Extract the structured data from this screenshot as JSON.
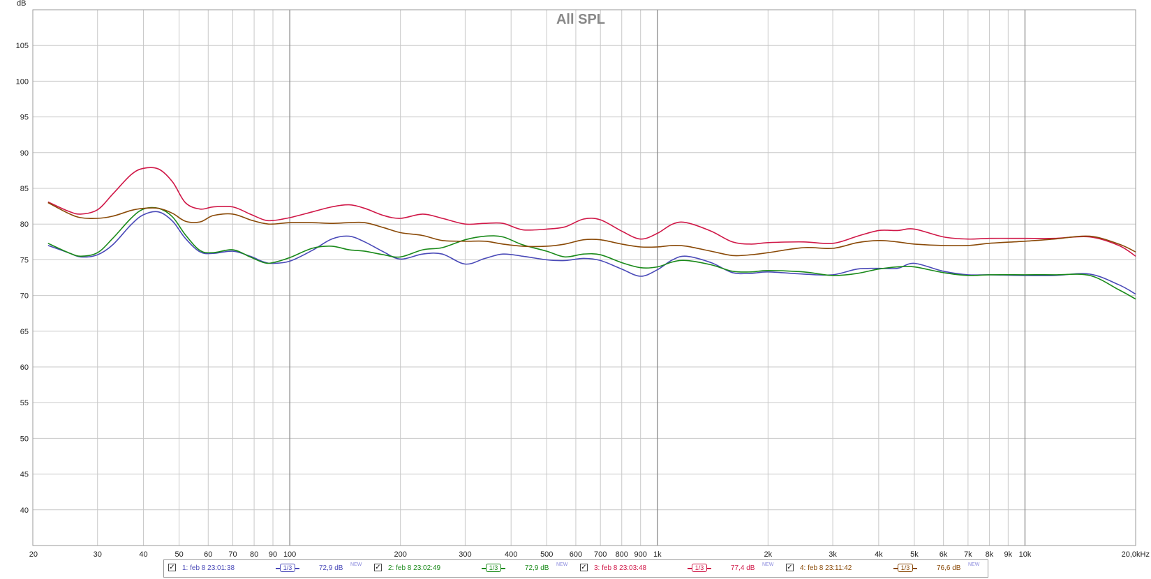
{
  "chart_data": {
    "type": "line",
    "title": "All SPL",
    "ylabel": "dB",
    "xlabel": "",
    "x_scale": "log",
    "xlim": [
      20,
      20000
    ],
    "ylim": [
      35,
      110
    ],
    "grid": true,
    "y_ticks": [
      "40",
      "45",
      "50",
      "55",
      "60",
      "65",
      "70",
      "75",
      "80",
      "85",
      "90",
      "95",
      "100",
      "105"
    ],
    "x_ticks": [
      {
        "f": 20,
        "label": "20"
      },
      {
        "f": 30,
        "label": "30"
      },
      {
        "f": 40,
        "label": "40"
      },
      {
        "f": 50,
        "label": "50"
      },
      {
        "f": 60,
        "label": "60"
      },
      {
        "f": 70,
        "label": "70"
      },
      {
        "f": 80,
        "label": "80"
      },
      {
        "f": 90,
        "label": "90"
      },
      {
        "f": 100,
        "label": "100"
      },
      {
        "f": 200,
        "label": "200"
      },
      {
        "f": 300,
        "label": "300"
      },
      {
        "f": 400,
        "label": "400"
      },
      {
        "f": 500,
        "label": "500"
      },
      {
        "f": 600,
        "label": "600"
      },
      {
        "f": 700,
        "label": "700"
      },
      {
        "f": 800,
        "label": "800"
      },
      {
        "f": 900,
        "label": "900"
      },
      {
        "f": 1000,
        "label": "1k"
      },
      {
        "f": 2000,
        "label": "2k"
      },
      {
        "f": 3000,
        "label": "3k"
      },
      {
        "f": 4000,
        "label": "4k"
      },
      {
        "f": 5000,
        "label": "5k"
      },
      {
        "f": 6000,
        "label": "6k"
      },
      {
        "f": 7000,
        "label": "7k"
      },
      {
        "f": 8000,
        "label": "8k"
      },
      {
        "f": 9000,
        "label": "9k"
      },
      {
        "f": 10000,
        "label": "10k"
      },
      {
        "f": 20000,
        "label": "20,0kHz"
      }
    ],
    "series": [
      {
        "name": "1: feb 8 23:01:38",
        "color": "#4a4ab8",
        "x": [
          22,
          25,
          27,
          30,
          33,
          37,
          40,
          44,
          48,
          52,
          57,
          62,
          70,
          78,
          85,
          90,
          100,
          115,
          130,
          145,
          160,
          180,
          200,
          230,
          260,
          300,
          340,
          380,
          430,
          500,
          560,
          630,
          700,
          800,
          900,
          1000,
          1100,
          1200,
          1400,
          1600,
          1800,
          2000,
          2500,
          3000,
          3500,
          4000,
          4500,
          5000,
          6000,
          7000,
          8000,
          10000,
          12000,
          15000,
          18000,
          20000
        ],
        "y": [
          77.0,
          76.0,
          75.4,
          75.7,
          77.1,
          79.9,
          81.3,
          81.7,
          80.4,
          78.0,
          76.1,
          75.9,
          76.2,
          75.5,
          74.7,
          74.5,
          74.8,
          76.3,
          77.9,
          78.3,
          77.5,
          76.1,
          75.1,
          75.8,
          75.8,
          74.4,
          75.2,
          75.8,
          75.5,
          75.0,
          74.9,
          75.2,
          74.9,
          73.7,
          72.7,
          73.6,
          75.0,
          75.5,
          74.6,
          73.2,
          73.1,
          73.3,
          73.0,
          72.9,
          73.7,
          73.8,
          73.8,
          74.5,
          73.4,
          72.9,
          72.9,
          72.8,
          72.8,
          73.0,
          71.5,
          70.2
        ]
      },
      {
        "name": "2: feb 8 23:02:49",
        "color": "#1a8a1a",
        "x": [
          22,
          25,
          27,
          30,
          33,
          37,
          40,
          44,
          48,
          52,
          57,
          62,
          70,
          78,
          85,
          90,
          100,
          115,
          130,
          145,
          160,
          180,
          200,
          230,
          260,
          300,
          340,
          380,
          430,
          500,
          560,
          630,
          700,
          800,
          900,
          1000,
          1100,
          1200,
          1400,
          1600,
          1800,
          2000,
          2500,
          3000,
          3500,
          4000,
          4500,
          5000,
          6000,
          7000,
          8000,
          10000,
          12000,
          15000,
          18000,
          20000
        ],
        "y": [
          77.3,
          76.0,
          75.5,
          76.0,
          78.0,
          80.8,
          82.1,
          82.2,
          81.0,
          78.5,
          76.3,
          76.0,
          76.4,
          75.4,
          74.6,
          74.6,
          75.3,
          76.6,
          76.9,
          76.4,
          76.2,
          75.7,
          75.4,
          76.4,
          76.7,
          77.8,
          78.3,
          78.2,
          77.1,
          76.2,
          75.4,
          75.8,
          75.7,
          74.6,
          73.9,
          74.0,
          74.7,
          74.9,
          74.3,
          73.4,
          73.3,
          73.5,
          73.3,
          72.8,
          73.1,
          73.7,
          74.0,
          74.0,
          73.2,
          72.8,
          72.9,
          72.9,
          72.9,
          72.8,
          70.8,
          69.5
        ]
      },
      {
        "name": "3: feb 8 23:03:48",
        "color": "#d01848",
        "x": [
          22,
          25,
          27,
          30,
          33,
          37,
          40,
          44,
          48,
          52,
          57,
          62,
          70,
          78,
          85,
          90,
          100,
          115,
          130,
          145,
          160,
          180,
          200,
          230,
          260,
          300,
          340,
          380,
          430,
          500,
          560,
          630,
          700,
          800,
          900,
          1000,
          1100,
          1200,
          1400,
          1600,
          1800,
          2000,
          2500,
          3000,
          3500,
          4000,
          4500,
          5000,
          6000,
          7000,
          8000,
          10000,
          12000,
          15000,
          18000,
          20000
        ],
        "y": [
          83.1,
          81.8,
          81.4,
          82.0,
          84.2,
          86.9,
          87.8,
          87.7,
          85.9,
          83.0,
          82.1,
          82.4,
          82.4,
          81.4,
          80.6,
          80.5,
          80.9,
          81.7,
          82.4,
          82.7,
          82.2,
          81.2,
          80.8,
          81.4,
          80.8,
          80.0,
          80.1,
          80.1,
          79.2,
          79.3,
          79.6,
          80.7,
          80.6,
          79.0,
          77.9,
          78.7,
          80.0,
          80.2,
          79.0,
          77.5,
          77.2,
          77.4,
          77.5,
          77.3,
          78.3,
          79.1,
          79.1,
          79.3,
          78.2,
          77.9,
          78.0,
          78.0,
          78.0,
          78.2,
          77.0,
          75.5
        ]
      },
      {
        "name": "4: feb 8 23:11:42",
        "color": "#8a4a08",
        "x": [
          22,
          25,
          27,
          30,
          33,
          37,
          40,
          44,
          48,
          52,
          57,
          62,
          70,
          78,
          85,
          90,
          100,
          115,
          130,
          145,
          160,
          180,
          200,
          230,
          260,
          300,
          340,
          380,
          430,
          500,
          560,
          630,
          700,
          800,
          900,
          1000,
          1100,
          1200,
          1400,
          1600,
          1800,
          2000,
          2500,
          3000,
          3500,
          4000,
          4500,
          5000,
          6000,
          7000,
          8000,
          10000,
          12000,
          15000,
          18000,
          20000
        ],
        "y": [
          83.0,
          81.5,
          80.9,
          80.8,
          81.1,
          81.9,
          82.2,
          82.2,
          81.5,
          80.4,
          80.3,
          81.2,
          81.4,
          80.6,
          80.1,
          80.0,
          80.2,
          80.2,
          80.1,
          80.2,
          80.2,
          79.5,
          78.8,
          78.4,
          77.7,
          77.6,
          77.6,
          77.2,
          76.9,
          76.9,
          77.2,
          77.8,
          77.8,
          77.2,
          76.8,
          76.8,
          77.0,
          76.9,
          76.2,
          75.6,
          75.7,
          76.0,
          76.7,
          76.6,
          77.4,
          77.7,
          77.5,
          77.2,
          77.0,
          77.0,
          77.3,
          77.6,
          77.9,
          78.3,
          77.2,
          76.1
        ]
      }
    ]
  },
  "legend": {
    "items": [
      {
        "label": "1: feb 8 23:01:38",
        "smoothing": "1/3",
        "level": "72,9 dB",
        "badge": "NEW",
        "color": "#4a4ab8",
        "checked": true
      },
      {
        "label": "2: feb 8 23:02:49",
        "smoothing": "1/3",
        "level": "72,9 dB",
        "badge": "NEW",
        "color": "#1a8a1a",
        "checked": true
      },
      {
        "label": "3: feb 8 23:03:48",
        "smoothing": "1/3",
        "level": "77,4 dB",
        "badge": "NEW",
        "color": "#d01848",
        "checked": true
      },
      {
        "label": "4: feb 8 23:11:42",
        "smoothing": "1/3",
        "level": "76,6 dB",
        "badge": "NEW",
        "color": "#8a4a08",
        "checked": true
      }
    ]
  }
}
